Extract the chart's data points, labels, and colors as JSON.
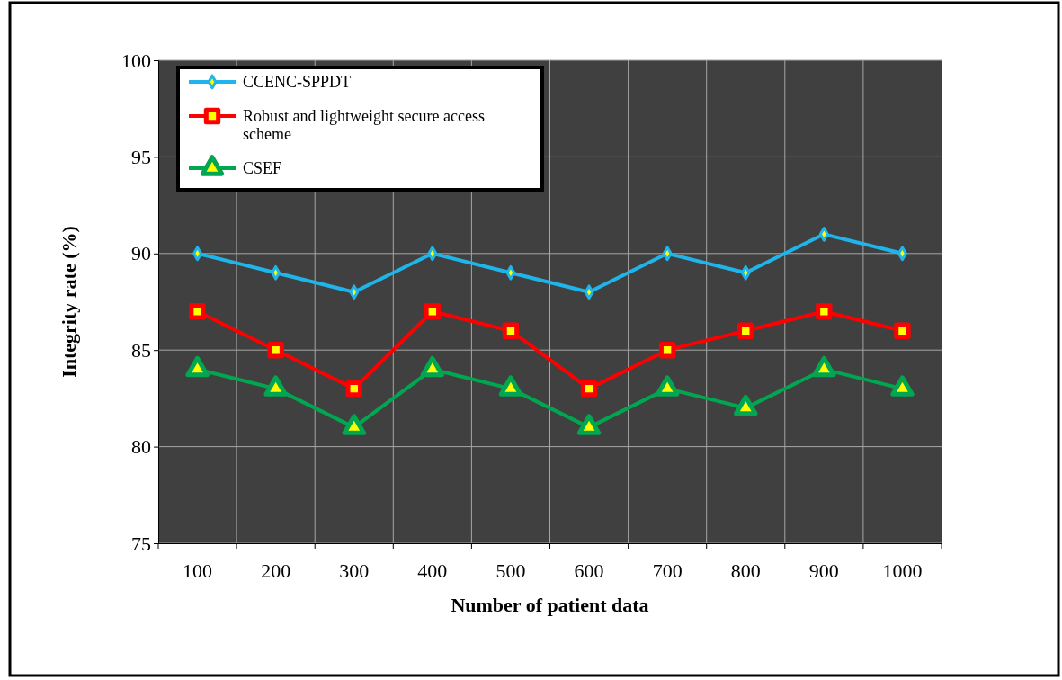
{
  "chart_data": {
    "type": "line",
    "xlabel": "Number of patient data",
    "ylabel": "Integrity rate (%)",
    "categories": [
      "100",
      "200",
      "300",
      "400",
      "500",
      "600",
      "700",
      "800",
      "900",
      "1000"
    ],
    "series": [
      {
        "name": "CCENC-SPPDT",
        "color": "#1fb4ea",
        "marker": "diamond",
        "values": [
          90,
          89,
          88,
          90,
          89,
          88,
          90,
          89,
          91,
          90
        ]
      },
      {
        "name": "Robust and lightweight secure access scheme",
        "color": "#ff0000",
        "marker": "square",
        "values": [
          87,
          85,
          83,
          87,
          86,
          83,
          85,
          86,
          87,
          86
        ]
      },
      {
        "name": "CSEF",
        "color": "#00a650",
        "marker": "triangle",
        "values": [
          84,
          83,
          81,
          84,
          83,
          81,
          83,
          82,
          84,
          83
        ]
      }
    ],
    "ylim": [
      75,
      100
    ],
    "yticks": [
      75,
      80,
      85,
      90,
      95,
      100
    ],
    "grid": true,
    "legend": "top left"
  }
}
